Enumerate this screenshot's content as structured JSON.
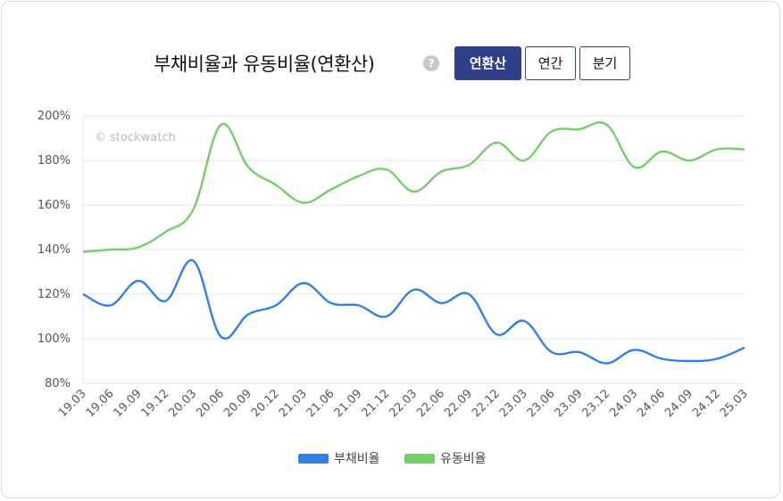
{
  "header": {
    "title": "부채비율과 유동비율(연환산)",
    "help_label": "?",
    "tabs": [
      {
        "label": "연환산",
        "active": true
      },
      {
        "label": "연간",
        "active": false
      },
      {
        "label": "분기",
        "active": false
      }
    ]
  },
  "watermark": "© stockwatch",
  "colors": {
    "debt": "#2f80e6",
    "current": "#74cf6a",
    "tab_active": "#2f3f88",
    "grid": "#e6e6e6"
  },
  "chart_data": {
    "type": "line",
    "title": "부채비율과 유동비율(연환산)",
    "categories": [
      "19.03",
      "19.06",
      "19.09",
      "19.12",
      "20.03",
      "20.06",
      "20.09",
      "20.12",
      "21.03",
      "21.06",
      "21.09",
      "21.12",
      "22.03",
      "22.06",
      "22.09",
      "22.12",
      "23.03",
      "23.06",
      "23.09",
      "23.12",
      "24.03",
      "24.06",
      "24.09",
      "24.12",
      "25.03"
    ],
    "ylim": [
      80,
      200
    ],
    "yticks": [
      80,
      100,
      120,
      140,
      160,
      180,
      200
    ],
    "ytick_labels": [
      "80%",
      "100%",
      "120%",
      "140%",
      "160%",
      "180%",
      "200%"
    ],
    "grid": true,
    "legend_position": "bottom",
    "series": [
      {
        "name": "부채비율",
        "color": "#2f80e6",
        "values": [
          120,
          115,
          126,
          117,
          135,
          101,
          111,
          115,
          125,
          116,
          115,
          110,
          122,
          116,
          120,
          102,
          108,
          94,
          94,
          89,
          95,
          91,
          90,
          91,
          96
        ]
      },
      {
        "name": "유동비율",
        "color": "#74cf6a",
        "values": [
          139,
          140,
          141,
          148,
          158,
          196,
          177,
          169,
          161,
          167,
          173,
          176,
          166,
          175,
          178,
          188,
          180,
          193,
          194,
          196,
          177,
          184,
          180,
          185,
          185
        ]
      }
    ]
  }
}
